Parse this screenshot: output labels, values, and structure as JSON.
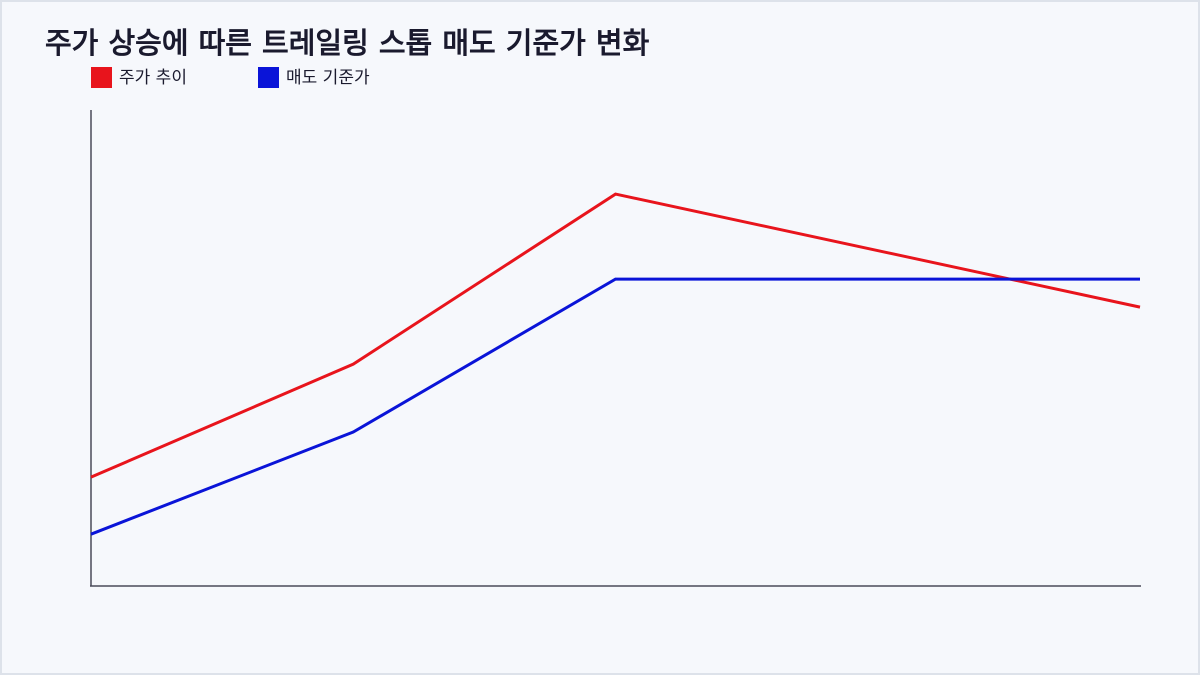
{
  "chart_data": {
    "type": "line",
    "title": "주가 상승에 따른 트레일링 스톱 매도 기준가 변화",
    "x": [
      0,
      1,
      2,
      4
    ],
    "xlim": [
      0,
      4
    ],
    "ylim": [
      0,
      100
    ],
    "series": [
      {
        "name": "주가 추이",
        "color": "#e8141c",
        "values": [
          22.7,
          46.5,
          82.3,
          58.5
        ]
      },
      {
        "name": "매도 기준가",
        "color": "#0a14d8",
        "values": [
          10.7,
          32.2,
          64.4,
          64.4
        ]
      }
    ]
  }
}
